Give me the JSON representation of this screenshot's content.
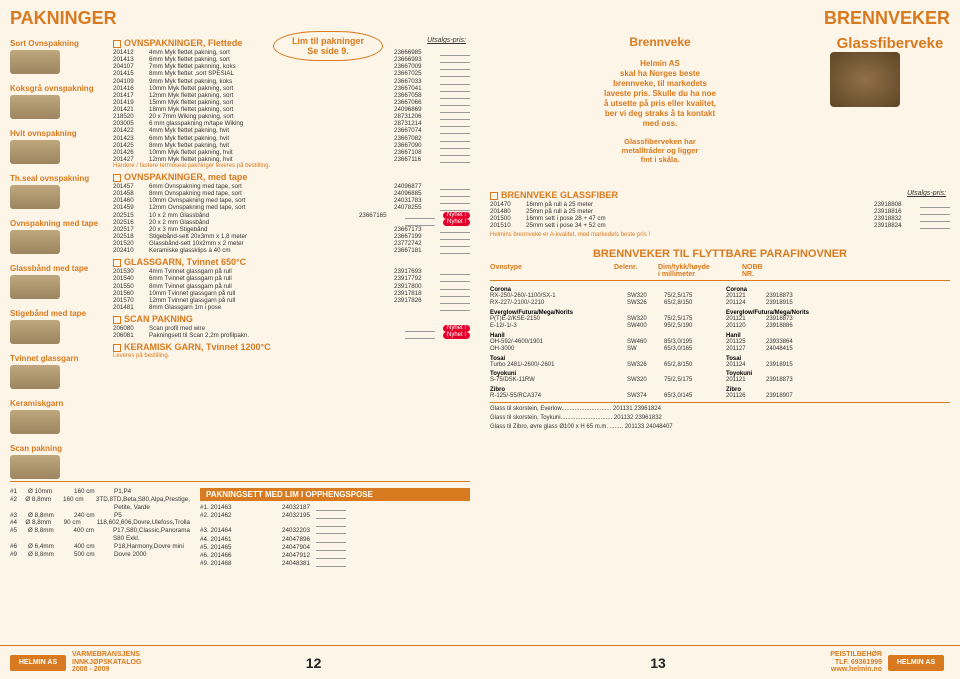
{
  "colors": {
    "accent": "#d87a1f",
    "bg": "#fdf5e8",
    "red": "#e4002b"
  },
  "left": {
    "title": "PAKNINGER",
    "callout": "Lim til pakninger\nSe side 9.",
    "utsalgs": "Utsalgs-pris:",
    "sidebar": [
      {
        "cap": "Sort Ovnspakning"
      },
      {
        "cap": "Koksgrå ovnspakning"
      },
      {
        "cap": "Hvit ovnspakning"
      },
      {
        "cap": "Th.seal ovnspakning"
      },
      {
        "cap": "Ovnspakning med tape"
      },
      {
        "cap": "Glassbånd med tape"
      },
      {
        "cap": "Stigebånd med tape"
      },
      {
        "cap": "Tvinnet glassgarn"
      },
      {
        "cap": "Keramiskgarn"
      },
      {
        "cap": "Scan pakning"
      }
    ],
    "sections": [
      {
        "head": "OVNSPAKNINGER, Flettede",
        "rows": [
          [
            "201412",
            "4mm Myk flettet pakning, sort",
            "23666985"
          ],
          [
            "201413",
            "6mm Myk flettet pakning, sort",
            "23666993"
          ],
          [
            "204107",
            "7mm Myk flettet paknning, koks",
            "23667009"
          ],
          [
            "201415",
            "8mm Myk flettet ,sort SPESIAL",
            "23667025"
          ],
          [
            "204109",
            "9mm Myk flettet pakning, koks",
            "23667033"
          ],
          [
            "201416",
            "10mm Myk flettet pakning, sort",
            "23667041"
          ],
          [
            "201417",
            "12mm Myk flettet pakning, sort",
            "23667058"
          ],
          [
            "201419",
            "15mm Myk flettet pakning, sort",
            "23667066"
          ],
          [
            "201421",
            "18mm Myk flettet pakning, sort",
            "24096869"
          ]
        ]
      },
      {
        "rows": [
          [
            "218520",
            "20 x 7mm Wiking pakning, sort",
            "28731206"
          ],
          [
            "203005",
            "6 mm glasspakning m/tape Wiking",
            "28731214"
          ]
        ]
      },
      {
        "rows": [
          [
            "201422",
            "4mm Myk flettet pakning, hvit",
            "23667074"
          ],
          [
            "201423",
            "6mm Myk flettet pakning, hvit",
            "23667082"
          ],
          [
            "201425",
            "8mm Myk flettet pakning, hvit",
            "23667090"
          ],
          [
            "201426",
            "10mm Myk flettet pakning, hvit",
            "23667108"
          ],
          [
            "201427",
            "12mm Myk flettet pakning, hvit",
            "23667116"
          ]
        ],
        "note": "Hardere / fastere termoseal pakninger leveres på bestilling."
      },
      {
        "head": "OVNSPAKNINGER, med tape",
        "rows": [
          [
            "201457",
            "6mm  Ovnspakning med tape, sort",
            "24096877"
          ],
          [
            "201458",
            "8mm  Ovnspakning med tape, sort",
            "24096885"
          ],
          [
            "201460",
            "10mm Ovnspakning med tape, sort",
            "24031783"
          ],
          [
            "201459",
            "12mm Ovnspakning med tape, sort",
            "24078255"
          ],
          [
            "202515",
            "10 x 2 mm Glassbånd",
            "23667165",
            "nyhet"
          ],
          [
            "202516",
            "20 x 2 mm Glassbånd",
            "",
            "nyhet"
          ],
          [
            "202517",
            "20 x 3 mm Stigebånd",
            "23667173"
          ],
          [
            "202518",
            "Stigebånd-sett 20x3mm x 1,8 meter",
            "23667199"
          ],
          [
            "201520",
            "Glassbånd-sett 10x2mm x  2 meter",
            "23772742"
          ],
          [
            "202410",
            "Keramiske glassklips à 40 cm",
            "23667181"
          ]
        ]
      },
      {
        "head": "GLASSGARN, Tvinnet 650°C",
        "rows": [
          [
            "201530",
            "4mm Tvinnet glassgarn på rull",
            "23917693"
          ],
          [
            "201540",
            "6mm Tvinnet glassgarn på rull",
            "23917792"
          ],
          [
            "201550",
            "8mm Tvinnet glassgarn på rull",
            "23917800"
          ],
          [
            "201560",
            "10mm Tvinnet glassgarn på rull",
            "23917818"
          ],
          [
            "201570",
            "12mm Tvinnet glassgarn på rull",
            "23917826"
          ],
          [
            "201481",
            "8mm Glassgarn 1m i pose",
            ""
          ]
        ]
      },
      {
        "head": "SCAN PAKNING",
        "rows": [
          [
            "206080",
            "Scan profil med wire",
            "",
            "nyhet"
          ],
          [
            "206081",
            "Pakningsett til Scan 2,2m profilpakn.",
            "",
            "nyhet"
          ]
        ]
      },
      {
        "head": "KERAMISK GARN, Tvinnet 1200°C",
        "note": "Leveres på bestilling."
      }
    ],
    "bottom": {
      "left_rows": [
        [
          "#1",
          "Ø 10mm",
          "160 cm",
          "P1,P4"
        ],
        [
          "#2",
          "Ø 8,8mm",
          "160 cm",
          "3TD,8TD,Beta,S80,Alpa,Prestige,"
        ],
        [
          "",
          "",
          "",
          "Petite, Varde"
        ],
        [
          "#3",
          "Ø 8,8mm",
          "240 cm",
          "P5"
        ],
        [
          "#4",
          "Ø 8,8mm",
          "90 cm",
          "118,602,606,Dovre,Ulefoss,Trolla"
        ],
        [
          "#5",
          "Ø 8,8mm",
          "400 cm",
          "P17,S80,Classic,Panorama S80 Exkl."
        ],
        [
          "#6",
          "Ø 6,4mm",
          "400 cm",
          "P18,Harmony,Dovre mini"
        ],
        [
          "#9",
          "Ø 8,8mm",
          "500 cm",
          "Dovre 2000"
        ]
      ],
      "band": "PAKNINGSETT MED LIM I OPPHENGSPOSE",
      "right_rows": [
        [
          "#1.  201463",
          "24032187"
        ],
        [
          "#2.  201462",
          "24032195"
        ],
        [
          "",
          ""
        ],
        [
          "#3.  201464",
          "24032203"
        ],
        [
          "#4.  201461",
          "24047896"
        ],
        [
          "#5.  201465",
          "24047904"
        ],
        [
          "#6.  201466",
          "24047912"
        ],
        [
          "#9.  201468",
          "24048381"
        ]
      ]
    }
  },
  "right": {
    "title": "BRENNVEKER",
    "sub1": "Brennveke",
    "sub2": "Glassfiberveke",
    "promo": "Helmin AS\nskal  ha Norges beste\nbrennveke, til markedets\nlaveste pris. Skulle du ha noe\nå utsette på pris eller kvalitet,\nber vi deg straks å ta kontakt\nmed oss.",
    "promo2": "Glassfiberveken har\nmetalltråder og ligger\nfint i skåla.",
    "glass_head": "BRENNVEKE GLASSFIBER",
    "utsalgs": "Utsalgs-pris:",
    "glass_rows": [
      [
        "201470",
        "16mm på rull à 25 meter",
        "23918808"
      ],
      [
        "201480",
        "25mm på rull à 25 meter",
        "23918816"
      ],
      [
        "201500",
        "16mm sett i pose 28 + 47 cm",
        "23918832"
      ],
      [
        "201510",
        "25mm sett i pose 34 + 52 cm",
        "23918824"
      ]
    ],
    "glass_note": "Helmins brennveke er A-kvalitet, med markedets beste pris !",
    "parafin_title": "BRENNVEKER TIL FLYTTBARE PARAFINOVNER",
    "pf_headers": [
      "Ovnstype",
      "Delenr.",
      "Dim/tykk/høyde\ni millimeter",
      "NOBB\nNR."
    ],
    "pf_left": [
      {
        "grp": "Corona",
        "rows": [
          [
            "RX-250/-260/-1100/SX-1",
            "SW320",
            "75/2,5/175"
          ],
          [
            "RX-227/-2100/-2210",
            "SW326",
            "65/2,8/150"
          ]
        ]
      },
      {
        "grp": "Everglow/Futura/Mega/Norits",
        "rows": [
          [
            "P(T)E-2/KSE-2150",
            "SW320",
            "75/2,5/175"
          ],
          [
            "E-12/-1/-3",
            "SW400",
            "95/2,5/190"
          ]
        ]
      },
      {
        "grp": "Hanil",
        "rows": [
          [
            "OH-592/-4600/1901",
            "SW460",
            "85/3,0/195"
          ],
          [
            "OH-3000",
            "SW",
            "65/3,0/165"
          ]
        ]
      },
      {
        "grp": "Tosai",
        "rows": [
          [
            "Turbo 2481/-2600/-2601",
            "SW326",
            "65/2,8/150"
          ]
        ]
      },
      {
        "grp": "Toyokuni",
        "rows": [
          [
            "S-75/DSK-11RW",
            "SW320",
            "75/2,5/175"
          ]
        ]
      },
      {
        "grp": "Zibro",
        "rows": [
          [
            "R-125/-55/RCA374",
            "SW374",
            "65/3,0/145"
          ]
        ]
      }
    ],
    "pf_right": [
      {
        "grp": "Corona",
        "rows": [
          [
            "201121",
            "23918873"
          ],
          [
            "201124",
            "23918915"
          ]
        ]
      },
      {
        "grp": "Everglow/Futura/Mega/Norits",
        "rows": [
          [
            "201121",
            "23918873"
          ],
          [
            "201120",
            "23918886"
          ]
        ]
      },
      {
        "grp": "Hanil",
        "rows": [
          [
            "201125",
            "23933864"
          ],
          [
            "201127",
            "24048415"
          ]
        ]
      },
      {
        "grp": "Tosai",
        "rows": [
          [
            "201124",
            "23918915"
          ]
        ]
      },
      {
        "grp": "Toyokuni",
        "rows": [
          [
            "201121",
            "23918873"
          ]
        ]
      },
      {
        "grp": "Zibro",
        "rows": [
          [
            "201126",
            "23918907"
          ]
        ]
      }
    ],
    "glass_lines": [
      [
        "Glass til skorstein, Everlow..............................",
        "201131",
        "23961824"
      ],
      [
        "Glass til skorstein, Toykuni...............................",
        "201132",
        "23961832"
      ],
      [
        "Glass til Zibro, øvre glass Ø100 x H 65 m.m. ........",
        "201133",
        "24048407"
      ]
    ]
  },
  "footer": {
    "left1": "VARMEBRANSJENS",
    "left2": "INNKJØPSKATALOG",
    "left3": "2008 - 2009",
    "page_l": "12",
    "page_r": "13",
    "right1": "PEISTILBEHØR",
    "right2": "TLF. 69361999",
    "right3": "www.helmin.no",
    "logo": "HELMIN AS"
  }
}
